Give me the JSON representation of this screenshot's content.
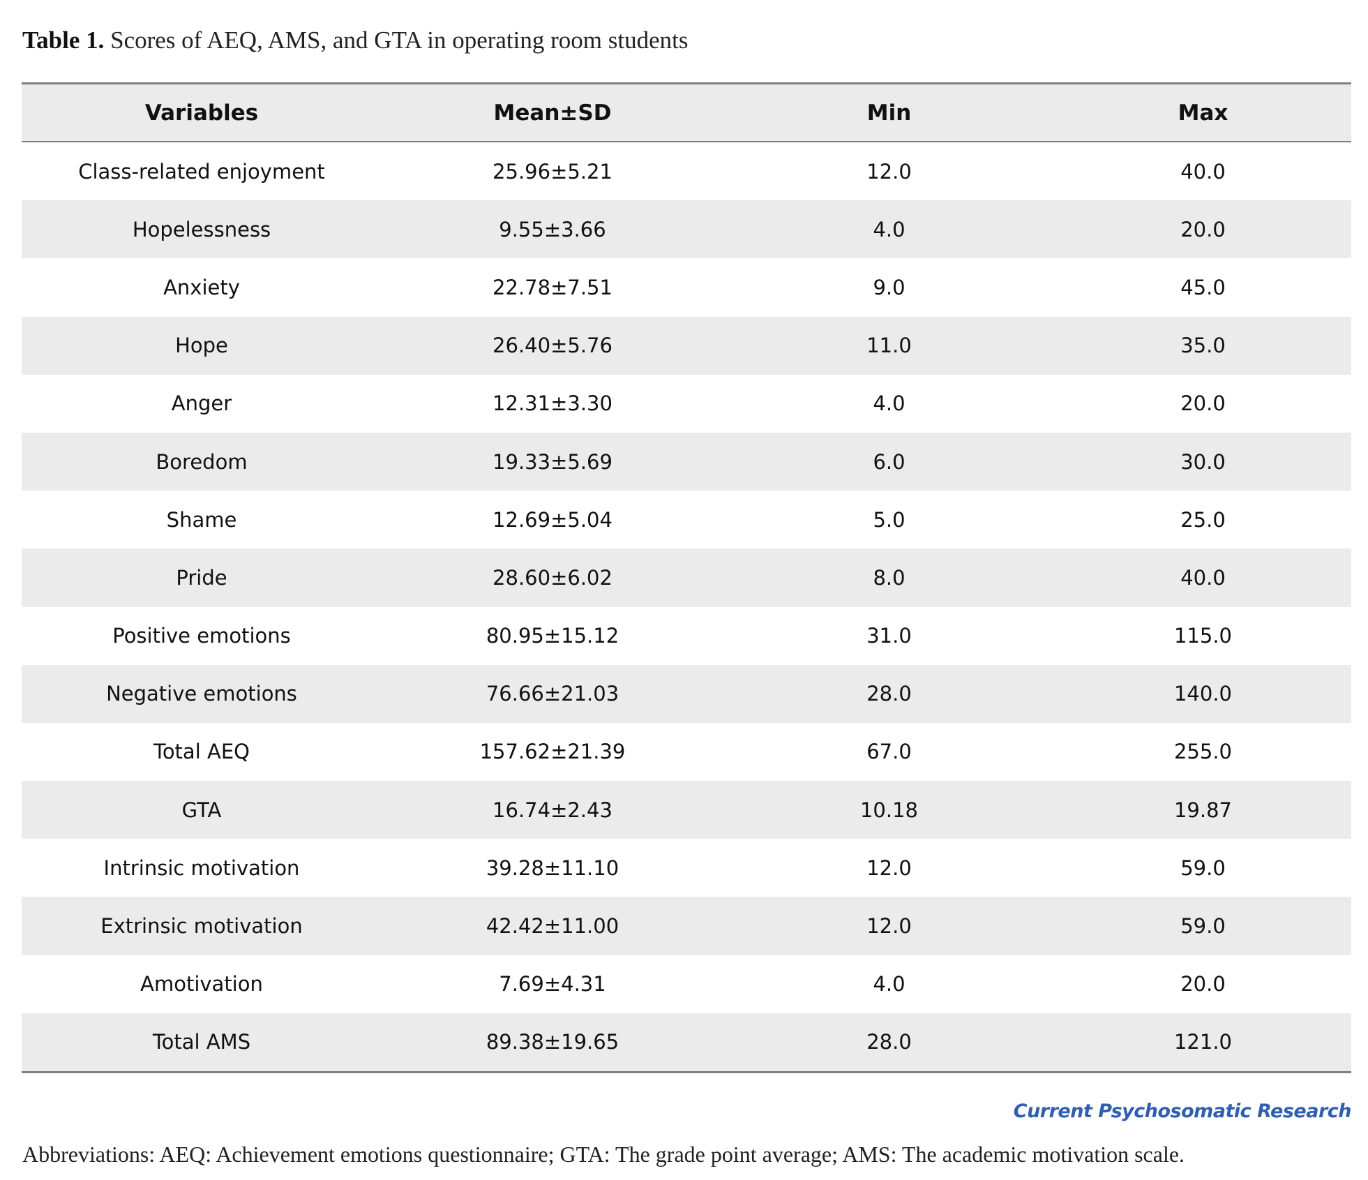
{
  "caption": {
    "label": "Table 1.",
    "text": "Scores of AEQ, AMS, and GTA in operating room students"
  },
  "table": {
    "headers": [
      "Variables",
      "Mean±SD",
      "Min",
      "Max"
    ],
    "rows": [
      [
        "Class-related enjoyment",
        "25.96±5.21",
        "12.0",
        "40.0"
      ],
      [
        "Hopelessness",
        "9.55±3.66",
        "4.0",
        "20.0"
      ],
      [
        "Anxiety",
        "22.78±7.51",
        "9.0",
        "45.0"
      ],
      [
        "Hope",
        "26.40±5.76",
        "11.0",
        "35.0"
      ],
      [
        "Anger",
        "12.31±3.30",
        "4.0",
        "20.0"
      ],
      [
        "Boredom",
        "19.33±5.69",
        "6.0",
        "30.0"
      ],
      [
        "Shame",
        "12.69±5.04",
        "5.0",
        "25.0"
      ],
      [
        "Pride",
        "28.60±6.02",
        "8.0",
        "40.0"
      ],
      [
        "Positive emotions",
        "80.95±15.12",
        "31.0",
        "115.0"
      ],
      [
        "Negative emotions",
        "76.66±21.03",
        "28.0",
        "140.0"
      ],
      [
        "Total AEQ",
        "157.62±21.39",
        "67.0",
        "255.0"
      ],
      [
        "GTA",
        "16.74±2.43",
        "10.18",
        "19.87"
      ],
      [
        "Intrinsic motivation",
        "39.28±11.10",
        "12.0",
        "59.0"
      ],
      [
        "Extrinsic motivation",
        "42.42±11.00",
        "12.0",
        "59.0"
      ],
      [
        "Amotivation",
        "7.69±4.31",
        "4.0",
        "20.0"
      ],
      [
        "Total AMS",
        "89.38±19.65",
        "28.0",
        "121.0"
      ]
    ]
  },
  "journal": "Current Psychosomatic Research",
  "abbreviations": "Abbreviations: AEQ: Achievement emotions questionnaire; GTA: The grade point average; AMS: The academic motivation scale.",
  "colors": {
    "header_bg": "#ebebeb",
    "stripe_bg": "#ebebeb",
    "rule": "#7f7f7f",
    "journal_blue": "#2f5fae"
  }
}
